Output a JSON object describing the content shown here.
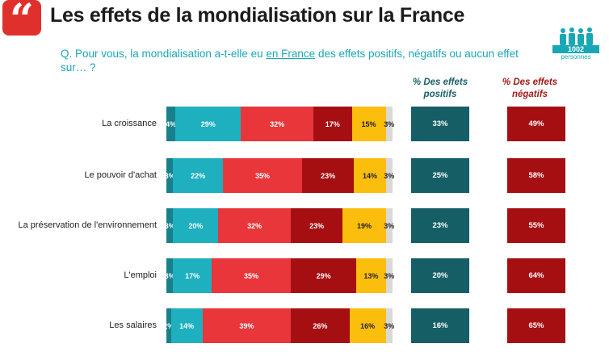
{
  "header": {
    "quote_glyph": "“",
    "title": "Les effets de la mondialisation sur la France",
    "question_pre": "Q. Pour vous, la mondialisation a-t-elle eu ",
    "question_underlined": "en France",
    "question_post": " des effets positifs, négatifs ou aucun effet sur… ?"
  },
  "logo": {
    "count": "1002",
    "unit": "personnes"
  },
  "columns": {
    "positive": "% Des effets positifs",
    "negative": "% Des effets négatifs"
  },
  "colors": {
    "s1": "#17808c",
    "s2": "#1eb0bf",
    "s3": "#e8363a",
    "s4": "#a50f12",
    "s5": "#fcbe0d",
    "s6": "#d9d9d9",
    "pos_box": "#155e66",
    "neg_box": "#a50f12"
  },
  "chart_data": {
    "type": "bar",
    "orientation": "horizontal-stacked",
    "categories": [
      "La croissance",
      "Le pouvoir d'achat",
      "La préservation de l'environnement",
      "L'emploi",
      "Les salaires"
    ],
    "series": [
      {
        "values": [
          4,
          3,
          3,
          3,
          2
        ]
      },
      {
        "values": [
          29,
          22,
          20,
          17,
          14
        ]
      },
      {
        "values": [
          32,
          35,
          32,
          35,
          39
        ]
      },
      {
        "values": [
          17,
          23,
          23,
          29,
          26
        ]
      },
      {
        "values": [
          15,
          14,
          19,
          13,
          16
        ]
      },
      {
        "values": [
          3,
          3,
          3,
          3,
          3
        ]
      }
    ],
    "positive_totals": [
      33,
      25,
      23,
      20,
      16
    ],
    "negative_totals": [
      49,
      58,
      55,
      64,
      65
    ],
    "value_suffix": "%"
  }
}
